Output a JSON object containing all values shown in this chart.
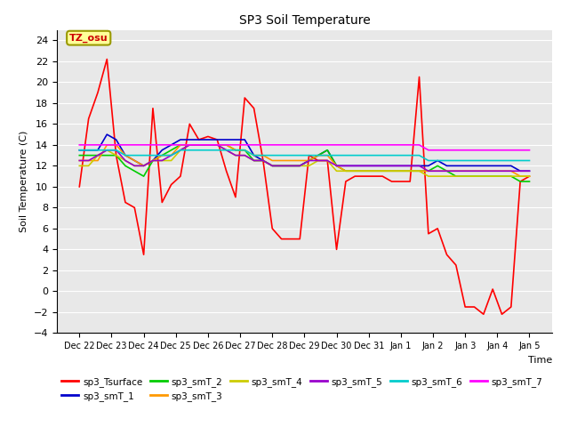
{
  "title": "SP3 Soil Temperature",
  "ylabel": "Soil Temperature (C)",
  "xlabel": "Time",
  "tz_label": "TZ_osu",
  "ylim": [
    -4,
    25
  ],
  "yticks": [
    -4,
    -2,
    0,
    2,
    4,
    6,
    8,
    10,
    12,
    14,
    16,
    18,
    20,
    22,
    24
  ],
  "x_labels": [
    "Dec 22",
    "Dec 23",
    "Dec 24",
    "Dec 25",
    "Dec 26",
    "Dec 27",
    "Dec 28",
    "Dec 29",
    "Dec 30",
    "Dec 31",
    "Jan 1",
    "Jan 2",
    "Jan 3",
    "Jan 4",
    "Jan 5"
  ],
  "background_color": "#e8e8e8",
  "grid_color": "#ffffff",
  "series_order": [
    "sp3_Tsurface",
    "sp3_smT_1",
    "sp3_smT_2",
    "sp3_smT_3",
    "sp3_smT_4",
    "sp3_smT_5",
    "sp3_smT_6",
    "sp3_smT_7"
  ],
  "legend_order": [
    "sp3_Tsurface",
    "sp3_smT_1",
    "sp3_smT_2",
    "sp3_smT_3",
    "sp3_smT_4",
    "sp3_smT_5",
    "sp3_smT_6",
    "sp3_smT_7"
  ],
  "series": {
    "sp3_Tsurface": {
      "color": "#ff0000",
      "linewidth": 1.2,
      "values": [
        10.0,
        16.5,
        19.0,
        22.2,
        13.0,
        8.5,
        8.0,
        3.5,
        17.5,
        8.5,
        10.2,
        11.0,
        16.0,
        14.5,
        14.8,
        14.5,
        11.5,
        9.0,
        18.5,
        17.5,
        12.5,
        6.0,
        5.0,
        5.0,
        5.0,
        13.0,
        12.5,
        12.5,
        4.0,
        10.5,
        11.0,
        11.0,
        11.0,
        11.0,
        10.5,
        10.5,
        10.5,
        20.5,
        5.5,
        6.0,
        3.5,
        2.5,
        -1.5,
        -1.5,
        -2.2,
        0.2,
        -2.2,
        -1.5,
        10.5,
        11.0
      ]
    },
    "sp3_smT_1": {
      "color": "#0000cc",
      "linewidth": 1.2,
      "values": [
        13.5,
        13.5,
        13.5,
        15.0,
        14.5,
        13.0,
        12.5,
        12.0,
        12.5,
        13.5,
        14.0,
        14.5,
        14.5,
        14.5,
        14.5,
        14.5,
        14.5,
        14.5,
        14.5,
        13.0,
        12.5,
        12.0,
        12.0,
        12.0,
        12.0,
        12.5,
        13.0,
        13.5,
        12.0,
        12.0,
        12.0,
        12.0,
        12.0,
        12.0,
        12.0,
        12.0,
        12.0,
        12.0,
        12.0,
        12.5,
        12.0,
        12.0,
        12.0,
        12.0,
        12.0,
        12.0,
        12.0,
        12.0,
        11.5,
        11.5
      ]
    },
    "sp3_smT_2": {
      "color": "#00cc00",
      "linewidth": 1.2,
      "values": [
        13.0,
        13.0,
        13.0,
        13.0,
        13.0,
        12.0,
        11.5,
        11.0,
        12.5,
        13.0,
        13.5,
        14.0,
        14.0,
        14.0,
        14.0,
        14.0,
        14.0,
        13.5,
        13.5,
        12.5,
        12.5,
        12.0,
        12.0,
        12.0,
        12.0,
        12.5,
        13.0,
        13.5,
        12.0,
        11.5,
        11.5,
        11.5,
        11.5,
        11.5,
        11.5,
        11.5,
        11.5,
        11.5,
        11.5,
        12.0,
        11.5,
        11.0,
        11.0,
        11.0,
        11.0,
        11.0,
        11.0,
        11.0,
        10.5,
        10.5
      ]
    },
    "sp3_smT_3": {
      "color": "#ff9900",
      "linewidth": 1.2,
      "values": [
        12.5,
        12.5,
        12.5,
        14.0,
        14.0,
        13.0,
        12.5,
        12.0,
        12.5,
        13.0,
        13.0,
        14.0,
        14.0,
        14.0,
        14.0,
        14.0,
        14.0,
        13.5,
        13.5,
        13.0,
        13.0,
        12.5,
        12.5,
        12.5,
        12.5,
        12.5,
        13.0,
        13.0,
        12.0,
        11.5,
        11.5,
        11.5,
        11.5,
        11.5,
        11.5,
        11.5,
        11.5,
        11.5,
        11.5,
        11.5,
        11.5,
        11.5,
        11.5,
        11.5,
        11.5,
        11.5,
        11.5,
        11.5,
        11.0,
        11.0
      ]
    },
    "sp3_smT_4": {
      "color": "#cccc00",
      "linewidth": 1.2,
      "values": [
        12.0,
        12.0,
        13.0,
        13.5,
        13.0,
        12.5,
        12.0,
        12.0,
        12.5,
        12.5,
        12.5,
        13.5,
        14.0,
        14.0,
        14.0,
        14.0,
        13.5,
        13.0,
        13.0,
        12.5,
        12.5,
        12.0,
        12.0,
        12.0,
        12.0,
        12.0,
        12.5,
        12.5,
        11.5,
        11.5,
        11.5,
        11.5,
        11.5,
        11.5,
        11.5,
        11.5,
        11.5,
        11.5,
        11.0,
        11.0,
        11.0,
        11.0,
        11.0,
        11.0,
        11.0,
        11.0,
        11.0,
        11.0,
        11.0,
        11.0
      ]
    },
    "sp3_smT_5": {
      "color": "#9900cc",
      "linewidth": 1.2,
      "values": [
        12.5,
        12.5,
        13.0,
        13.5,
        13.5,
        12.5,
        12.0,
        12.0,
        12.5,
        12.5,
        13.0,
        13.5,
        14.0,
        14.0,
        14.0,
        14.0,
        13.5,
        13.0,
        13.0,
        12.5,
        12.5,
        12.0,
        12.0,
        12.0,
        12.0,
        12.5,
        12.5,
        12.5,
        12.0,
        12.0,
        12.0,
        12.0,
        12.0,
        12.0,
        12.0,
        12.0,
        12.0,
        12.0,
        11.5,
        11.5,
        11.5,
        11.5,
        11.5,
        11.5,
        11.5,
        11.5,
        11.5,
        11.5,
        11.5,
        11.5
      ]
    },
    "sp3_smT_6": {
      "color": "#00cccc",
      "linewidth": 1.2,
      "values": [
        13.5,
        13.5,
        13.5,
        13.5,
        13.5,
        13.0,
        13.0,
        13.0,
        13.0,
        13.0,
        13.0,
        13.5,
        13.5,
        13.5,
        13.5,
        13.5,
        13.5,
        13.5,
        13.5,
        13.0,
        13.0,
        13.0,
        13.0,
        13.0,
        13.0,
        13.0,
        13.0,
        13.0,
        13.0,
        13.0,
        13.0,
        13.0,
        13.0,
        13.0,
        13.0,
        13.0,
        13.0,
        13.0,
        12.5,
        12.5,
        12.5,
        12.5,
        12.5,
        12.5,
        12.5,
        12.5,
        12.5,
        12.5,
        12.5,
        12.5
      ]
    },
    "sp3_smT_7": {
      "color": "#ff00ff",
      "linewidth": 1.2,
      "values": [
        14.0,
        14.0,
        14.0,
        14.0,
        14.0,
        14.0,
        14.0,
        14.0,
        14.0,
        14.0,
        14.0,
        14.0,
        14.0,
        14.0,
        14.0,
        14.0,
        14.0,
        14.0,
        14.0,
        14.0,
        14.0,
        14.0,
        14.0,
        14.0,
        14.0,
        14.0,
        14.0,
        14.0,
        14.0,
        14.0,
        14.0,
        14.0,
        14.0,
        14.0,
        14.0,
        14.0,
        14.0,
        14.0,
        13.5,
        13.5,
        13.5,
        13.5,
        13.5,
        13.5,
        13.5,
        13.5,
        13.5,
        13.5,
        13.5,
        13.5
      ]
    }
  }
}
